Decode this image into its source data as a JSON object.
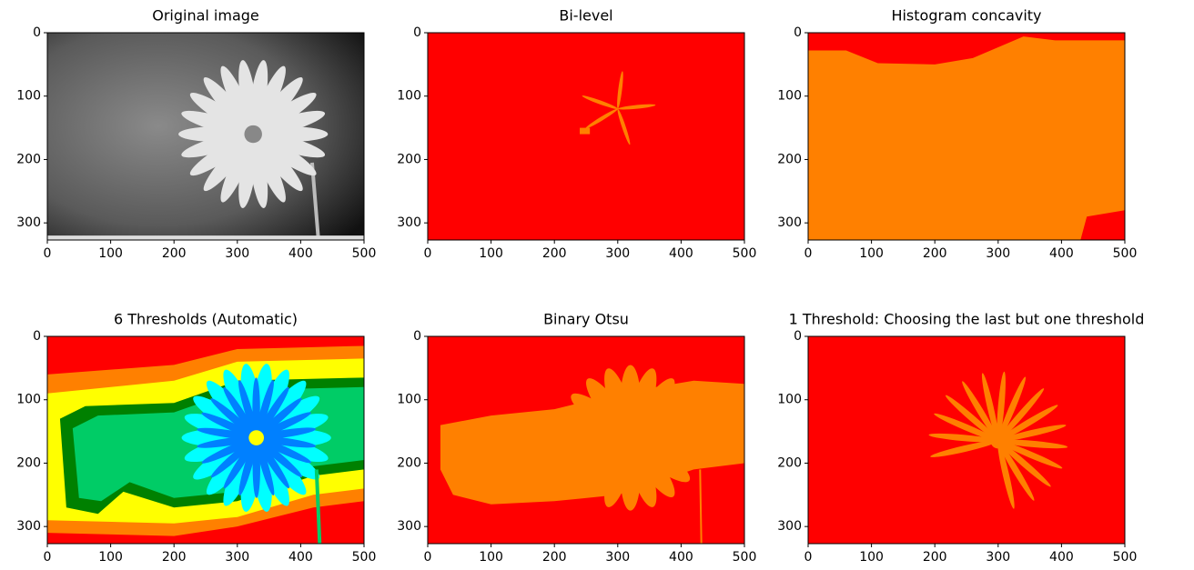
{
  "chart_data": [
    {
      "type": "image",
      "title": "Original image",
      "xlim": [
        0,
        500
      ],
      "ylim": [
        0,
        327
      ],
      "y_inverted": true,
      "xticks": [
        0,
        100,
        200,
        300,
        400,
        500
      ],
      "yticks": [
        0,
        100,
        200,
        300
      ]
    },
    {
      "type": "image",
      "title": "Bi-level",
      "xlim": [
        0,
        500
      ],
      "ylim": [
        0,
        327
      ],
      "y_inverted": true,
      "xticks": [
        0,
        100,
        200,
        300,
        400,
        500
      ],
      "yticks": [
        0,
        100,
        200,
        300
      ]
    },
    {
      "type": "image",
      "title": "Histogram concavity",
      "xlim": [
        0,
        500
      ],
      "ylim": [
        0,
        327
      ],
      "y_inverted": true,
      "xticks": [
        0,
        100,
        200,
        300,
        400,
        500
      ],
      "yticks": [
        0,
        100,
        200,
        300
      ]
    },
    {
      "type": "image",
      "title": "6 Thresholds (Automatic)",
      "xlim": [
        0,
        500
      ],
      "ylim": [
        0,
        327
      ],
      "y_inverted": true,
      "xticks": [
        0,
        100,
        200,
        300,
        400,
        500
      ],
      "yticks": [
        0,
        100,
        200,
        300
      ]
    },
    {
      "type": "image",
      "title": "Binary Otsu",
      "xlim": [
        0,
        500
      ],
      "ylim": [
        0,
        327
      ],
      "y_inverted": true,
      "xticks": [
        0,
        100,
        200,
        300,
        400,
        500
      ],
      "yticks": [
        0,
        100,
        200,
        300
      ]
    },
    {
      "type": "image",
      "title": "1 Threshold: Choosing the last but one threshold",
      "xlim": [
        0,
        500
      ],
      "ylim": [
        0,
        327
      ],
      "y_inverted": true,
      "xticks": [
        0,
        100,
        200,
        300,
        400,
        500
      ],
      "yticks": [
        0,
        100,
        200,
        300
      ]
    }
  ]
}
